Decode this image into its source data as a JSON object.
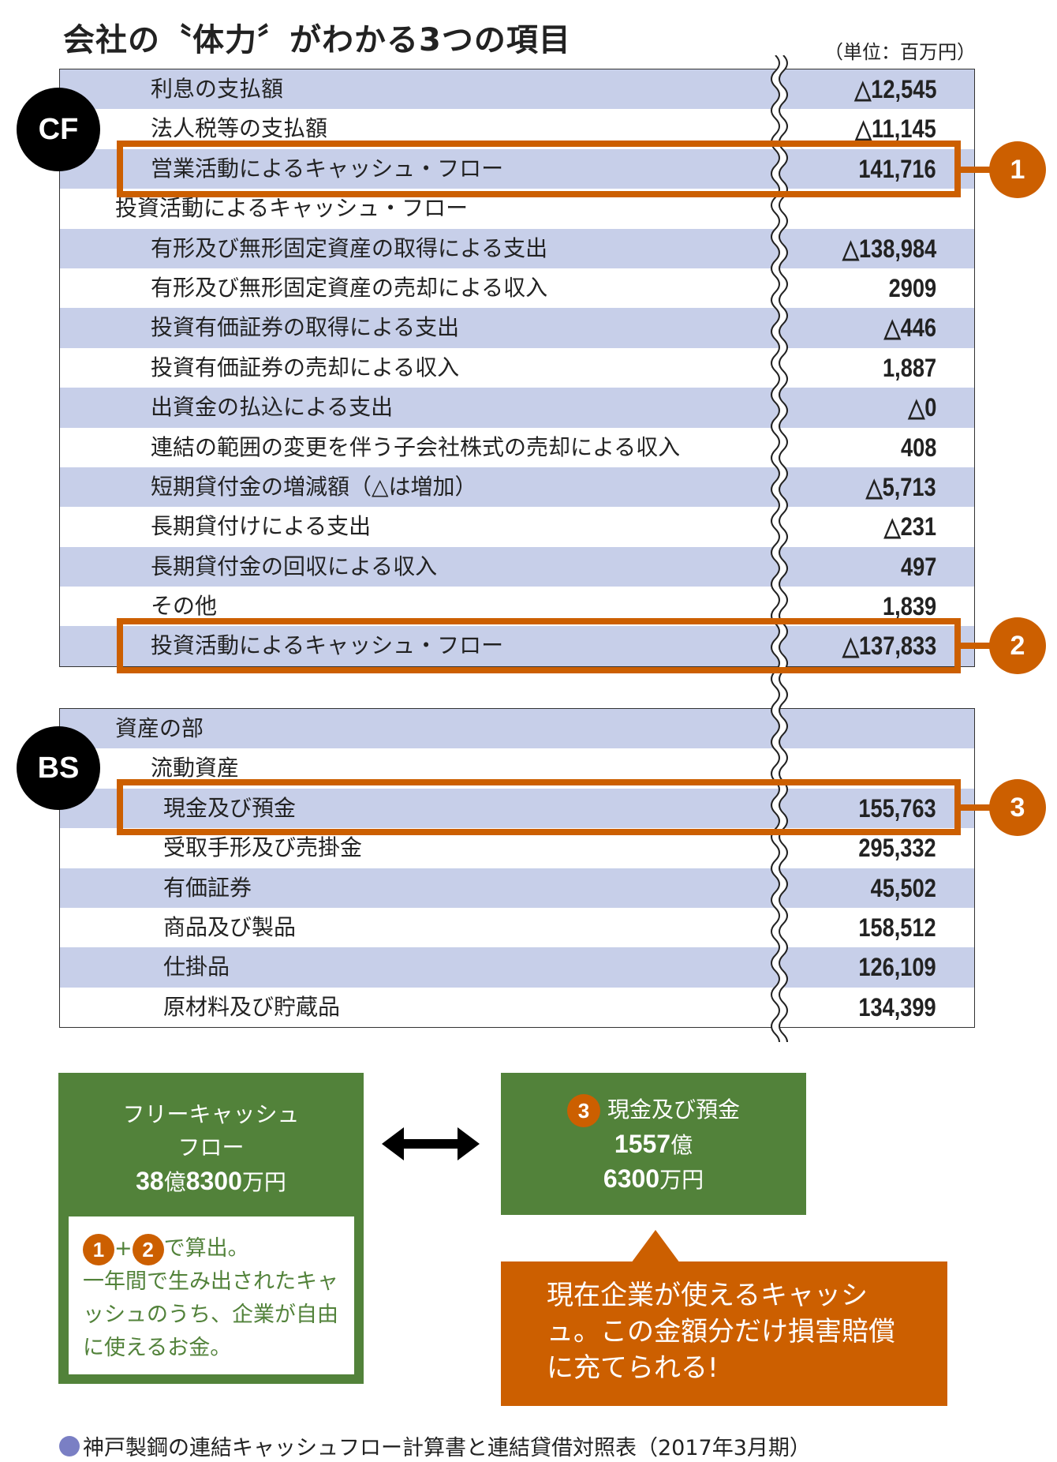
{
  "title": "会社の〝体力〞がわかる3つの項目",
  "unit": "（単位：百万円）",
  "cf": {
    "badge": "CF",
    "rows": [
      {
        "label": "利息の支払額",
        "value": "△12,545",
        "indent": 1
      },
      {
        "label": "法人税等の支払額",
        "value": "△11,145",
        "indent": 1
      },
      {
        "label": "営業活動によるキャッシュ・フロー",
        "value": "141,716",
        "indent": 1
      },
      {
        "label": "投資活動によるキャッシュ・フロー",
        "value": "",
        "indent": 0
      },
      {
        "label": "有形及び無形固定資産の取得による支出",
        "value": "△138,984",
        "indent": 1
      },
      {
        "label": "有形及び無形固定資産の売却による収入",
        "value": "2909",
        "indent": 1
      },
      {
        "label": "投資有価証券の取得による支出",
        "value": "△446",
        "indent": 1
      },
      {
        "label": "投資有価証券の売却による収入",
        "value": "1,887",
        "indent": 1
      },
      {
        "label": "出資金の払込による支出",
        "value": "△0",
        "indent": 1
      },
      {
        "label": "連結の範囲の変更を伴う子会社株式の売却による収入",
        "value": "408",
        "indent": 1
      },
      {
        "label": "短期貸付金の増減額（△は増加）",
        "value": "△5,713",
        "indent": 1
      },
      {
        "label": "長期貸付けによる支出",
        "value": "△231",
        "indent": 1
      },
      {
        "label": "長期貸付金の回収による収入",
        "value": "497",
        "indent": 1
      },
      {
        "label": "その他",
        "value": "1,839",
        "indent": 1
      },
      {
        "label": "投資活動によるキャッシュ・フロー",
        "value": "△137,833",
        "indent": 1
      }
    ]
  },
  "bs": {
    "badge": "BS",
    "rows": [
      {
        "label": "資産の部",
        "value": "",
        "indent": 0
      },
      {
        "label": "流動資産",
        "value": "",
        "indent": 1
      },
      {
        "label": "現金及び預金",
        "value": "155,763",
        "indent": 2
      },
      {
        "label": "受取手形及び売掛金",
        "value": "295,332",
        "indent": 2
      },
      {
        "label": "有価証券",
        "value": "45,502",
        "indent": 2
      },
      {
        "label": "商品及び製品",
        "value": "158,512",
        "indent": 2
      },
      {
        "label": "仕掛品",
        "value": "126,109",
        "indent": 2
      },
      {
        "label": "原材料及び貯蔵品",
        "value": "134,399",
        "indent": 2
      }
    ]
  },
  "markers": [
    "1",
    "2",
    "3"
  ],
  "fcf": {
    "line1": "フリーキャッシュ",
    "line2": "フロー",
    "amount_a": "38",
    "unit_oku": "億",
    "amount_b": "8300",
    "unit_man": "万円"
  },
  "note": {
    "m1": "1",
    "plus": "+",
    "m2": "2",
    "suffix": "で算出。",
    "body": "一年間で生み出されたキャッシュのうち、企業が自由に使えるお金。"
  },
  "cash": {
    "marker": "3",
    "label": "現金及び預金",
    "amount_a": "1557",
    "unit_oku": "億",
    "amount_b": "6300",
    "unit_man": "万円"
  },
  "callout": "現在企業が使えるキャッシュ。この金額分だけ損害賠償に充てられる!",
  "footer": "神戸製鋼の連結キャッシュフロー計算書と連結貸借対照表（2017年3月期）",
  "colors": {
    "row_blue": "#c7cfe9",
    "orange": "#cc5f00",
    "green": "#52823a",
    "footer_dot": "#7a7fc4"
  }
}
